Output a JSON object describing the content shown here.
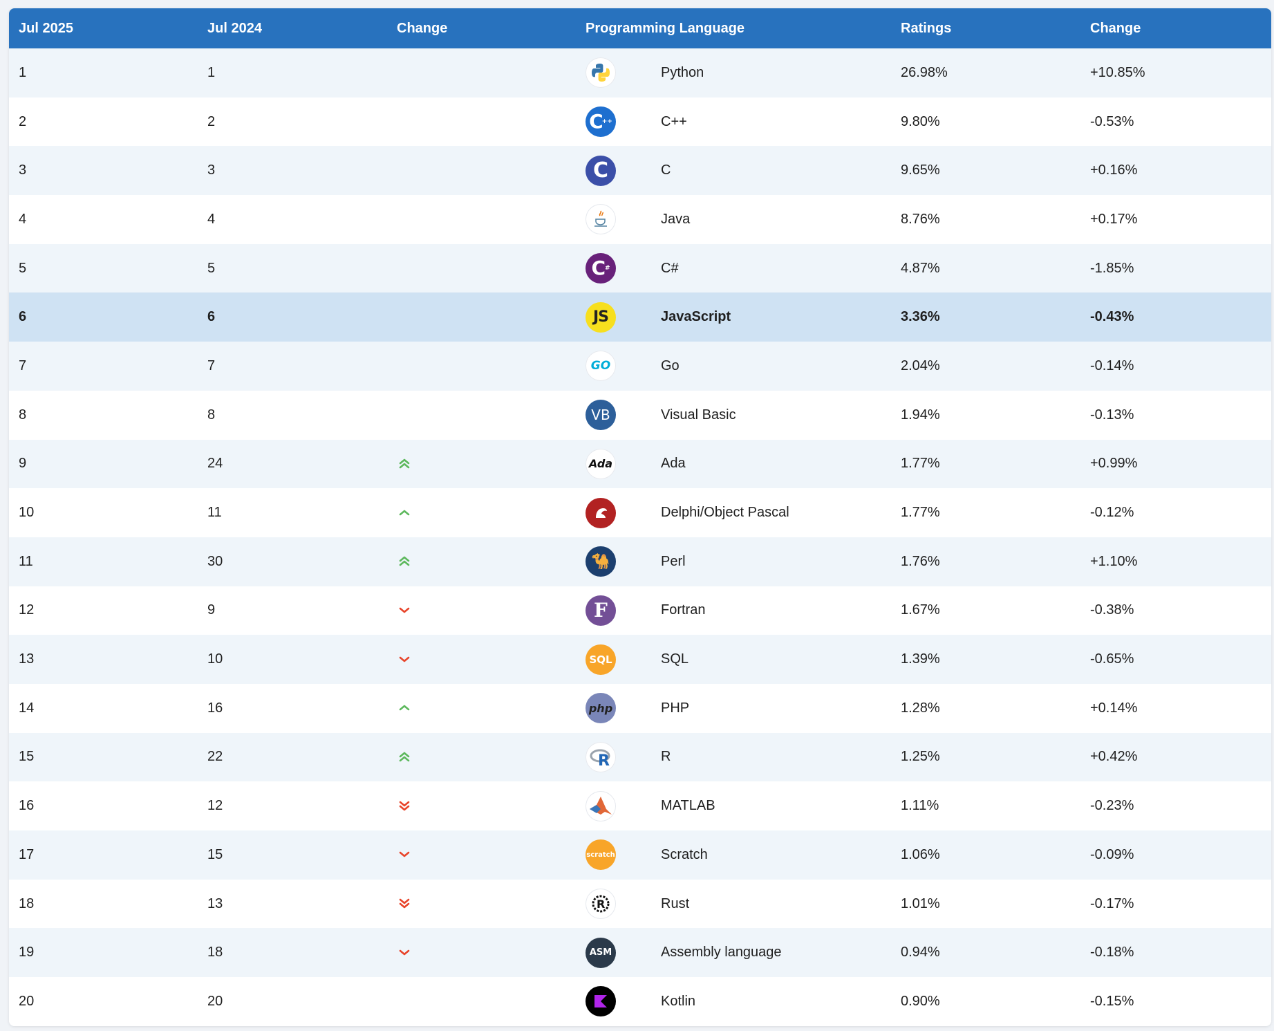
{
  "headers": {
    "rank_now": "Jul 2025",
    "rank_prev": "Jul 2024",
    "change": "Change",
    "language": "Programming Language",
    "ratings": "Ratings",
    "rating_change": "Change"
  },
  "colors": {
    "header_bg": "#2872be",
    "row_alt": "#eff5fa",
    "row_highlight": "#cfe2f3",
    "arrow_up": "#5cb85c",
    "arrow_down": "#e8442a"
  },
  "rows": [
    {
      "rank": "1",
      "prev": "1",
      "trend": "none",
      "icon": "python-logo-icon",
      "language": "Python",
      "ratings": "26.98%",
      "change": "+10.85%"
    },
    {
      "rank": "2",
      "prev": "2",
      "trend": "none",
      "icon": "cpp-logo-icon",
      "language": "C++",
      "ratings": "9.80%",
      "change": "-0.53%"
    },
    {
      "rank": "3",
      "prev": "3",
      "trend": "none",
      "icon": "c-logo-icon",
      "language": "C",
      "ratings": "9.65%",
      "change": "+0.16%"
    },
    {
      "rank": "4",
      "prev": "4",
      "trend": "none",
      "icon": "java-logo-icon",
      "language": "Java",
      "ratings": "8.76%",
      "change": "+0.17%"
    },
    {
      "rank": "5",
      "prev": "5",
      "trend": "none",
      "icon": "csharp-logo-icon",
      "language": "C#",
      "ratings": "4.87%",
      "change": "-1.85%"
    },
    {
      "rank": "6",
      "prev": "6",
      "trend": "none",
      "icon": "javascript-logo-icon",
      "language": "JavaScript",
      "ratings": "3.36%",
      "change": "-0.43%",
      "highlight": true
    },
    {
      "rank": "7",
      "prev": "7",
      "trend": "none",
      "icon": "go-logo-icon",
      "language": "Go",
      "ratings": "2.04%",
      "change": "-0.14%"
    },
    {
      "rank": "8",
      "prev": "8",
      "trend": "none",
      "icon": "visual-basic-logo-icon",
      "language": "Visual Basic",
      "ratings": "1.94%",
      "change": "-0.13%"
    },
    {
      "rank": "9",
      "prev": "24",
      "trend": "up2",
      "icon": "ada-logo-icon",
      "language": "Ada",
      "ratings": "1.77%",
      "change": "+0.99%"
    },
    {
      "rank": "10",
      "prev": "11",
      "trend": "up1",
      "icon": "delphi-logo-icon",
      "language": "Delphi/Object Pascal",
      "ratings": "1.77%",
      "change": "-0.12%"
    },
    {
      "rank": "11",
      "prev": "30",
      "trend": "up2",
      "icon": "perl-logo-icon",
      "language": "Perl",
      "ratings": "1.76%",
      "change": "+1.10%"
    },
    {
      "rank": "12",
      "prev": "9",
      "trend": "down1",
      "icon": "fortran-logo-icon",
      "language": "Fortran",
      "ratings": "1.67%",
      "change": "-0.38%"
    },
    {
      "rank": "13",
      "prev": "10",
      "trend": "down1",
      "icon": "sql-logo-icon",
      "language": "SQL",
      "ratings": "1.39%",
      "change": "-0.65%"
    },
    {
      "rank": "14",
      "prev": "16",
      "trend": "up1",
      "icon": "php-logo-icon",
      "language": "PHP",
      "ratings": "1.28%",
      "change": "+0.14%"
    },
    {
      "rank": "15",
      "prev": "22",
      "trend": "up2",
      "icon": "r-logo-icon",
      "language": "R",
      "ratings": "1.25%",
      "change": "+0.42%"
    },
    {
      "rank": "16",
      "prev": "12",
      "trend": "down2",
      "icon": "matlab-logo-icon",
      "language": "MATLAB",
      "ratings": "1.11%",
      "change": "-0.23%"
    },
    {
      "rank": "17",
      "prev": "15",
      "trend": "down1",
      "icon": "scratch-logo-icon",
      "language": "Scratch",
      "ratings": "1.06%",
      "change": "-0.09%"
    },
    {
      "rank": "18",
      "prev": "13",
      "trend": "down2",
      "icon": "rust-logo-icon",
      "language": "Rust",
      "ratings": "1.01%",
      "change": "-0.17%"
    },
    {
      "rank": "19",
      "prev": "18",
      "trend": "down1",
      "icon": "assembly-logo-icon",
      "language": "Assembly language",
      "ratings": "0.94%",
      "change": "-0.18%"
    },
    {
      "rank": "20",
      "prev": "20",
      "trend": "none",
      "icon": "kotlin-logo-icon",
      "language": "Kotlin",
      "ratings": "0.90%",
      "change": "-0.15%"
    }
  ]
}
